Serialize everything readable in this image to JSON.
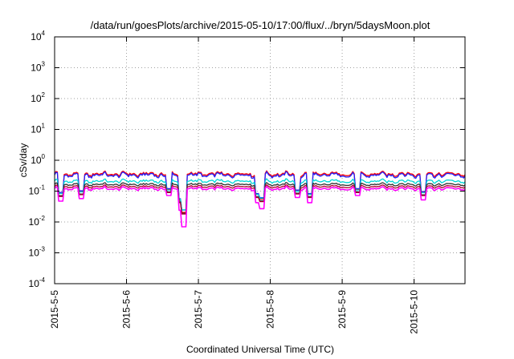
{
  "chart_data": {
    "type": "line",
    "title": "/data/run/goesPlots/archive/2015-05-10/17:00/flux/../bryn/5daysMoon.plot",
    "xlabel": "Coordinated Universal Time (UTC)",
    "ylabel": "cSv/day",
    "yscale": "log",
    "ylim": [
      0.0001,
      10000
    ],
    "xlim": [
      "2015-05-05",
      "2015-05-10 17:00"
    ],
    "y_ticks": [
      {
        "base": "10",
        "exp": "4",
        "value": 10000
      },
      {
        "base": "10",
        "exp": "3",
        "value": 1000
      },
      {
        "base": "10",
        "exp": "2",
        "value": 100
      },
      {
        "base": "10",
        "exp": "1",
        "value": 10
      },
      {
        "base": "10",
        "exp": "0",
        "value": 1
      },
      {
        "base": "10",
        "exp": "-1",
        "value": 0.1
      },
      {
        "base": "10",
        "exp": "-2",
        "value": 0.01
      },
      {
        "base": "10",
        "exp": "-3",
        "value": 0.001
      },
      {
        "base": "10",
        "exp": "-4",
        "value": 0.0001
      }
    ],
    "x_ticks": [
      {
        "label": "2015-5-5",
        "date": "2015-05-05"
      },
      {
        "label": "2015-5-6",
        "date": "2015-05-06"
      },
      {
        "label": "2015-5-7",
        "date": "2015-05-07"
      },
      {
        "label": "2015-5-8",
        "date": "2015-05-08"
      },
      {
        "label": "2015-5-9",
        "date": "2015-05-09"
      },
      {
        "label": "2015-5-10",
        "date": "2015-05-10"
      }
    ],
    "grid": true,
    "series": [
      {
        "color": "#ff0000",
        "base": 0.36,
        "amp": 0.25,
        "dip": 0.3
      },
      {
        "color": "#2020ff",
        "base": 0.33,
        "amp": 0.28,
        "dip": 0.35
      },
      {
        "color": "#00d8d8",
        "base": 0.21,
        "amp": 0.2,
        "dip": 0.4
      },
      {
        "color": "#303030",
        "base": 0.165,
        "amp": 0.15,
        "dip": 0.35
      },
      {
        "color": "#b00030",
        "base": 0.14,
        "amp": 0.15,
        "dip": 0.35
      },
      {
        "color": "#ff00ff",
        "base": 0.12,
        "amp": 0.18,
        "dip": 0.05
      }
    ],
    "dips": [
      {
        "date": "2015-05-05 02:00",
        "value": 0.045
      },
      {
        "date": "2015-05-05 09:00",
        "value": 0.055
      },
      {
        "date": "2015-05-06 14:00",
        "value": 0.07
      },
      {
        "date": "2015-05-06 18:00",
        "value": 0.022
      },
      {
        "date": "2015-05-06 19:00",
        "value": 0.006
      },
      {
        "date": "2015-05-07 20:00",
        "value": 0.04
      },
      {
        "date": "2015-05-07 21:00",
        "value": 0.025
      },
      {
        "date": "2015-05-08 09:00",
        "value": 0.06
      },
      {
        "date": "2015-05-08 13:00",
        "value": 0.04
      },
      {
        "date": "2015-05-09 05:00",
        "value": 0.07
      },
      {
        "date": "2015-05-10 03:00",
        "value": 0.05
      }
    ]
  }
}
